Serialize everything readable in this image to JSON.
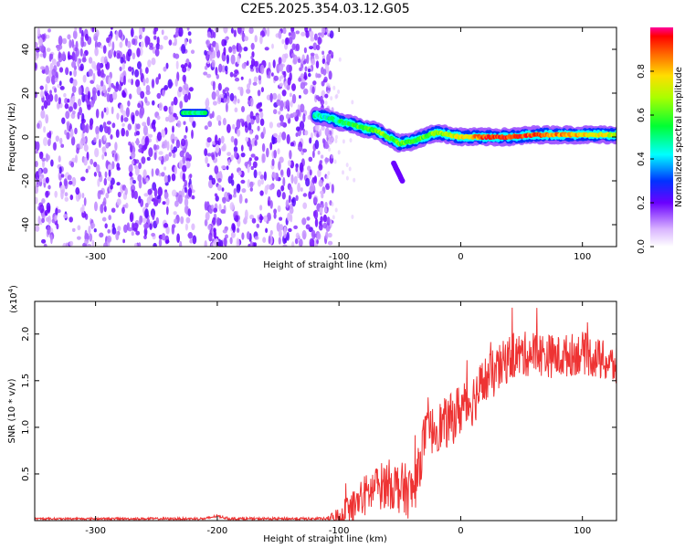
{
  "title": "C2E5.2025.354.03.12.G05",
  "chart_data": [
    {
      "type": "heatmap",
      "xlabel": "Height of straight line (km)",
      "ylabel": "Frequency (Hz)",
      "xlim": [
        -350,
        128
      ],
      "ylim": [
        -50,
        50
      ],
      "xticks": [
        -300,
        -200,
        -100,
        0,
        100
      ],
      "yticks": [
        -40,
        -20,
        0,
        20,
        40
      ],
      "xtick_labels": [
        "-300",
        "-200",
        "-100",
        "0",
        "100"
      ],
      "ytick_labels": [
        "-40",
        "-20",
        "0",
        "20",
        "40"
      ],
      "colorbar": {
        "label": "Normalized spectral amplitude",
        "range": [
          0,
          1
        ],
        "ticks": [
          0.0,
          0.2,
          0.4,
          0.6,
          0.8
        ],
        "tick_labels": [
          "0.0",
          "0.2",
          "0.4",
          "0.6",
          "0.8"
        ]
      },
      "noise_floor": {
        "x_range": [
          -350,
          -105
        ],
        "gap_x": [
          -218,
          -210
        ],
        "amplitude": 0.1
      },
      "isolated_blob": {
        "x_range": [
          -228,
          -210
        ],
        "freq": 11,
        "amplitude": 0.45
      },
      "ridge": {
        "x": [
          -120,
          -110,
          -100,
          -90,
          -80,
          -70,
          -60,
          -50,
          -40,
          -30,
          -20,
          -10,
          0,
          20,
          40,
          60,
          80,
          100,
          128
        ],
        "freq": [
          10,
          9,
          7,
          6,
          4,
          3,
          0,
          -3,
          -2,
          0,
          2,
          1,
          0,
          0,
          0,
          1,
          1,
          1,
          1
        ],
        "amplitude": [
          0.5,
          0.45,
          0.5,
          0.55,
          0.6,
          0.6,
          0.65,
          0.6,
          0.55,
          0.6,
          0.65,
          0.7,
          0.75,
          0.9,
          0.92,
          0.9,
          0.85,
          0.8,
          0.7
        ]
      },
      "tail": {
        "x": [
          -55,
          -48
        ],
        "freq": [
          -12,
          -20
        ]
      }
    },
    {
      "type": "line",
      "xlabel": "Height of straight line (km)",
      "ylabel": "SNR (10 * v/v)",
      "y_exponent_label": "(x10",
      "y_exponent_sup": "4",
      "y_exponent_close": ")",
      "xlim": [
        -350,
        128
      ],
      "ylim": [
        0,
        2.35
      ],
      "xticks": [
        -300,
        -200,
        -100,
        0,
        100
      ],
      "yticks": [
        0.5,
        1.0,
        1.5,
        2.0
      ],
      "xtick_labels": [
        "-300",
        "-200",
        "-100",
        "0",
        "100"
      ],
      "ytick_labels": [
        "0.5",
        "1.0",
        "1.5",
        "2.0"
      ],
      "color": "#ee3333",
      "trend": {
        "x": [
          -350,
          -210,
          -200,
          -190,
          -110,
          -100,
          -90,
          -80,
          -70,
          -60,
          -50,
          -40,
          -35,
          -30,
          -20,
          -10,
          0,
          10,
          20,
          30,
          40,
          60,
          80,
          100,
          128
        ],
        "y": [
          0.02,
          0.02,
          0.05,
          0.02,
          0.02,
          0.03,
          0.1,
          0.25,
          0.35,
          0.4,
          0.35,
          0.3,
          0.5,
          0.9,
          1.0,
          1.05,
          1.2,
          1.3,
          1.5,
          1.6,
          1.75,
          1.8,
          1.75,
          1.8,
          1.65
        ]
      },
      "noise": {
        "x": [
          -350,
          -110,
          -95,
          -40,
          -30,
          0,
          40,
          128
        ],
        "amp": [
          0.01,
          0.015,
          0.2,
          0.3,
          0.25,
          0.3,
          0.25,
          0.22
        ]
      }
    }
  ]
}
